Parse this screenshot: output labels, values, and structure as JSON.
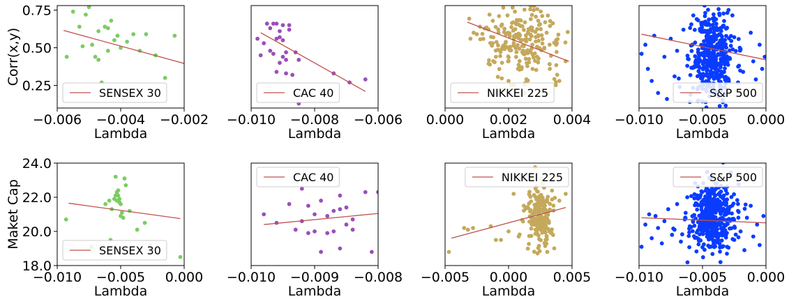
{
  "chart_data": [
    {
      "type": "scatter",
      "index": "SENSEX 30",
      "color": "#7ccc63",
      "xlabel": "Lambda",
      "ylabel": "Corr(x,y)",
      "xlim": [
        -0.006,
        -0.002
      ],
      "ylim": [
        0.1,
        0.78
      ],
      "xticks": [
        "−0.006",
        "−0.004",
        "−0.002"
      ],
      "xtick_values": [
        -0.006,
        -0.004,
        -0.002
      ],
      "yticks": [
        "0.25",
        "0.50",
        "0.75"
      ],
      "ytick_values": [
        0.25,
        0.5,
        0.75
      ],
      "legend": {
        "label": "SENSEX 30",
        "position": "lower-left"
      },
      "fit_line": {
        "x": [
          -0.0058,
          -0.0019
        ],
        "y": [
          0.615,
          0.39
        ]
      },
      "x": [
        -0.0057,
        -0.0055,
        -0.0053,
        -0.0052,
        -0.0051,
        -0.005,
        -0.0049,
        -0.0048,
        -0.0047,
        -0.0047,
        -0.0046,
        -0.0045,
        -0.0044,
        -0.0044,
        -0.0043,
        -0.0042,
        -0.0041,
        -0.0041,
        -0.004,
        -0.0039,
        -0.0038,
        -0.0036,
        -0.0034,
        -0.0032,
        -0.0029,
        -0.0026,
        -0.0023,
        -0.0019
      ],
      "y": [
        0.44,
        0.74,
        0.64,
        0.51,
        0.72,
        0.77,
        0.52,
        0.44,
        0.42,
        0.61,
        0.27,
        0.64,
        0.63,
        0.48,
        0.68,
        0.55,
        0.19,
        0.58,
        0.5,
        0.16,
        0.54,
        0.59,
        0.48,
        0.59,
        0.45,
        0.3,
        0.58,
        0.26
      ]
    },
    {
      "type": "scatter",
      "index": "CAC 40",
      "color": "#9a4fb9",
      "xlabel": "Lambda",
      "xlim": [
        -0.01,
        -0.006
      ],
      "ylim": [
        0.1,
        0.78
      ],
      "xticks": [
        "−0.010",
        "−0.008",
        "−0.006"
      ],
      "xtick_values": [
        -0.01,
        -0.008,
        -0.006
      ],
      "legend": {
        "label": "CAC 40",
        "position": "lower-left"
      },
      "fit_line": {
        "x": [
          -0.0097,
          -0.0064
        ],
        "y": [
          0.6,
          0.21
        ]
      },
      "x": [
        -0.0098,
        -0.0097,
        -0.0096,
        -0.0095,
        -0.0094,
        -0.0094,
        -0.0093,
        -0.0093,
        -0.0092,
        -0.0092,
        -0.0092,
        -0.0091,
        -0.0091,
        -0.0091,
        -0.009,
        -0.009,
        -0.009,
        -0.0089,
        -0.0089,
        -0.0089,
        -0.0088,
        -0.0088,
        -0.0087,
        -0.0086,
        -0.0085,
        -0.0085,
        -0.0074,
        -0.0069,
        -0.0064
      ],
      "y": [
        0.56,
        0.45,
        0.53,
        0.66,
        0.48,
        0.63,
        0.66,
        0.46,
        0.66,
        0.56,
        0.34,
        0.4,
        0.57,
        0.61,
        0.44,
        0.55,
        0.65,
        0.33,
        0.42,
        0.47,
        0.65,
        0.62,
        0.32,
        0.47,
        0.42,
        0.13,
        0.33,
        0.27,
        0.29
      ]
    },
    {
      "type": "scatter",
      "index": "NIKKEI 225",
      "color": "#c4a95c",
      "xlabel": "Lambda",
      "xlim": [
        0.0,
        0.004
      ],
      "ylim": [
        0.1,
        0.78
      ],
      "xticks": [
        "0.000",
        "0.002",
        "0.004"
      ],
      "xtick_values": [
        0.0,
        0.002,
        0.004
      ],
      "legend": {
        "label": "NIKKEI 225",
        "position": "lower-left"
      },
      "fit_line": {
        "x": [
          0.0007,
          0.0039
        ],
        "y": [
          0.67,
          0.41
        ]
      },
      "cloud": {
        "n": 200,
        "x_center": 0.0024,
        "x_spread": 0.0006,
        "y_center": 0.53,
        "y_spread": 0.13
      },
      "x": [
        0.0008,
        0.0009,
        0.001,
        0.0011,
        0.0013,
        0.0014,
        0.0015,
        0.0016,
        0.0017,
        0.0018,
        0.002,
        0.0022,
        0.0023,
        0.0025,
        0.0027,
        0.0029,
        0.003,
        0.0032,
        0.0033,
        0.0035,
        0.0036,
        0.0038
      ],
      "y": [
        0.56,
        0.6,
        0.59,
        0.64,
        0.63,
        0.72,
        0.53,
        0.44,
        0.71,
        0.5,
        0.28,
        0.74,
        0.36,
        0.2,
        0.69,
        0.44,
        0.22,
        0.6,
        0.36,
        0.52,
        0.28,
        0.41
      ]
    },
    {
      "type": "scatter",
      "index": "S&P 500",
      "color": "#0a3cff",
      "xlabel": "Lambda",
      "xlim": [
        -0.01,
        0.0
      ],
      "ylim": [
        0.1,
        0.78
      ],
      "xticks": [
        "−0.010",
        "−0.005",
        "0.000"
      ],
      "xtick_values": [
        -0.01,
        -0.005,
        0.0
      ],
      "legend": {
        "label": "S&P 500",
        "position": "lower-right"
      },
      "fit_line": {
        "x": [
          -0.0098,
          0.0
        ],
        "y": [
          0.59,
          0.42
        ]
      },
      "cloud": {
        "n": 420,
        "x_center": -0.0042,
        "x_spread": 0.0008,
        "y_center": 0.44,
        "y_spread": 0.16
      },
      "x": [
        -0.0098,
        -0.0095,
        -0.0093,
        -0.009,
        -0.0088,
        -0.0085,
        -0.008,
        -0.0078,
        -0.0075,
        -0.0072,
        -0.007,
        -0.0068,
        -0.0065,
        -0.0062,
        -0.006,
        -0.0058,
        -0.0025,
        -0.0022,
        -0.002,
        -0.0018,
        -0.0015,
        -0.0012,
        -0.001,
        -0.0008,
        -0.0005,
        -0.0003,
        -0.0001
      ],
      "y": [
        0.46,
        0.52,
        0.36,
        0.28,
        0.58,
        0.2,
        0.44,
        0.16,
        0.56,
        0.31,
        0.48,
        0.24,
        0.62,
        0.38,
        0.14,
        0.52,
        0.57,
        0.27,
        0.49,
        0.34,
        0.18,
        0.6,
        0.41,
        0.29,
        0.52,
        0.36,
        0.44
      ]
    },
    {
      "type": "scatter",
      "index": "SENSEX 30",
      "color": "#7ccc63",
      "xlabel": "Lambda",
      "ylabel": "Maket Cap",
      "xlim": [
        -0.01,
        0.0
      ],
      "ylim": [
        18.0,
        24.0
      ],
      "xticks": [
        "−0.010",
        "−0.005",
        "0.000"
      ],
      "xtick_values": [
        -0.01,
        -0.005,
        0.0
      ],
      "yticks": [
        "18.0",
        "20.0",
        "22.0",
        "24.0"
      ],
      "ytick_values": [
        18.0,
        20.0,
        22.0,
        24.0
      ],
      "legend": {
        "label": "SENSEX 30",
        "position": "lower-left"
      },
      "fit_line": {
        "x": [
          -0.0091,
          -0.0003
        ],
        "y": [
          21.65,
          20.75
        ]
      },
      "x": [
        -0.0093,
        -0.0073,
        -0.0062,
        -0.0059,
        -0.0058,
        -0.0057,
        -0.0055,
        -0.0054,
        -0.0054,
        -0.0053,
        -0.0053,
        -0.0052,
        -0.0052,
        -0.0051,
        -0.0051,
        -0.005,
        -0.005,
        -0.0049,
        -0.0048,
        -0.0047,
        -0.0046,
        -0.0043,
        -0.0037,
        -0.0031,
        -0.0027,
        -0.0003
      ],
      "y": [
        20.7,
        19.1,
        21.6,
        21.8,
        19.5,
        21.3,
        21.9,
        23.2,
        22.1,
        22.3,
        21.8,
        22.4,
        22.1,
        21.7,
        21.9,
        21.6,
        20.9,
        21.1,
        20.8,
        23.1,
        22.7,
        21.2,
        20.1,
        20.5,
        19.2,
        18.5
      ]
    },
    {
      "type": "scatter",
      "index": "CAC 40",
      "color": "#9a4fb9",
      "xlabel": "Lambda",
      "xlim": [
        -0.01,
        -0.008
      ],
      "ylim": [
        18.0,
        24.0
      ],
      "xticks": [
        "−0.010",
        "−0.009",
        "−0.008"
      ],
      "xtick_values": [
        -0.01,
        -0.009,
        -0.008
      ],
      "legend": {
        "label": "CAC 40",
        "position": "upper-left"
      },
      "fit_line": {
        "x": [
          -0.0098,
          -0.008
        ],
        "y": [
          20.4,
          21.05
        ]
      },
      "x": [
        -0.0098,
        -0.0096,
        -0.0094,
        -0.0093,
        -0.0092,
        -0.0092,
        -0.0091,
        -0.0091,
        -0.009,
        -0.009,
        -0.0089,
        -0.0089,
        -0.0088,
        -0.0088,
        -0.0087,
        -0.0087,
        -0.0086,
        -0.0086,
        -0.0086,
        -0.0085,
        -0.0085,
        -0.0084,
        -0.0084,
        -0.0082,
        -0.0081,
        -0.008
      ],
      "y": [
        21.0,
        20.5,
        21.6,
        20.1,
        22.5,
        20.6,
        19.9,
        21.5,
        20.0,
        21.0,
        21.8,
        18.8,
        19.9,
        20.9,
        20.0,
        21.2,
        21.3,
        19.0,
        22.1,
        21.4,
        20.4,
        20.7,
        20.1,
        22.3,
        18.8,
        22.3
      ]
    },
    {
      "type": "scatter",
      "index": "NIKKEI 225",
      "color": "#c4a95c",
      "xlabel": "Lambda",
      "xlim": [
        -0.005,
        0.005
      ],
      "ylim": [
        18.0,
        24.0
      ],
      "xticks": [
        "−0.005",
        "0.000",
        "0.005"
      ],
      "xtick_values": [
        -0.005,
        0.0,
        0.005
      ],
      "legend": {
        "label": "NIKKEI 225",
        "position": "upper-right"
      },
      "fit_line": {
        "x": [
          -0.0045,
          0.0045
        ],
        "y": [
          19.6,
          21.4
        ]
      },
      "cloud": {
        "n": 200,
        "x_center": 0.0024,
        "x_spread": 0.0005,
        "y_center": 20.7,
        "y_spread": 0.9
      },
      "x": [
        -0.0047,
        -0.0035,
        -0.0032,
        -0.0028,
        -0.0014,
        -0.001,
        -0.0006,
        0.0,
        0.0004,
        0.0008,
        0.0012,
        0.004,
        0.0045
      ],
      "y": [
        18.8,
        20.2,
        20.1,
        20.2,
        20.3,
        19.5,
        19.5,
        20.0,
        22.2,
        19.7,
        21.5,
        21.8,
        22.2
      ]
    },
    {
      "type": "scatter",
      "index": "S&P 500",
      "color": "#0a3cff",
      "xlabel": "Lambda",
      "xlim": [
        -0.01,
        0.0
      ],
      "ylim": [
        18.0,
        24.0
      ],
      "xticks": [
        "−0.010",
        "−0.005",
        "0.000"
      ],
      "xtick_values": [
        -0.01,
        -0.005,
        0.0
      ],
      "legend": {
        "label": "S&P 500",
        "position": "upper-right"
      },
      "fit_line": {
        "x": [
          -0.0098,
          0.0
        ],
        "y": [
          20.8,
          20.5
        ]
      },
      "cloud": {
        "n": 420,
        "x_center": -0.0042,
        "x_spread": 0.0008,
        "y_center": 20.8,
        "y_spread": 1.0
      },
      "x": [
        -0.0098,
        -0.0095,
        -0.0092,
        -0.009,
        -0.0087,
        -0.0085,
        -0.0082,
        -0.008,
        -0.0077,
        -0.0074,
        -0.0072,
        -0.007,
        -0.0067,
        -0.0064,
        -0.0062,
        -0.006,
        -0.0025,
        -0.0022,
        -0.002,
        -0.0017,
        -0.0015,
        -0.0012,
        -0.001,
        -0.0007,
        -0.0005,
        -0.0002
      ],
      "y": [
        19.1,
        20.4,
        21.0,
        19.6,
        20.9,
        20.2,
        19.3,
        20.6,
        21.3,
        19.8,
        20.1,
        21.6,
        19.4,
        20.7,
        22.0,
        20.3,
        19.5,
        21.2,
        20.0,
        18.9,
        20.8,
        21.5,
        19.7,
        20.4,
        19.2,
        20.9
      ]
    }
  ]
}
